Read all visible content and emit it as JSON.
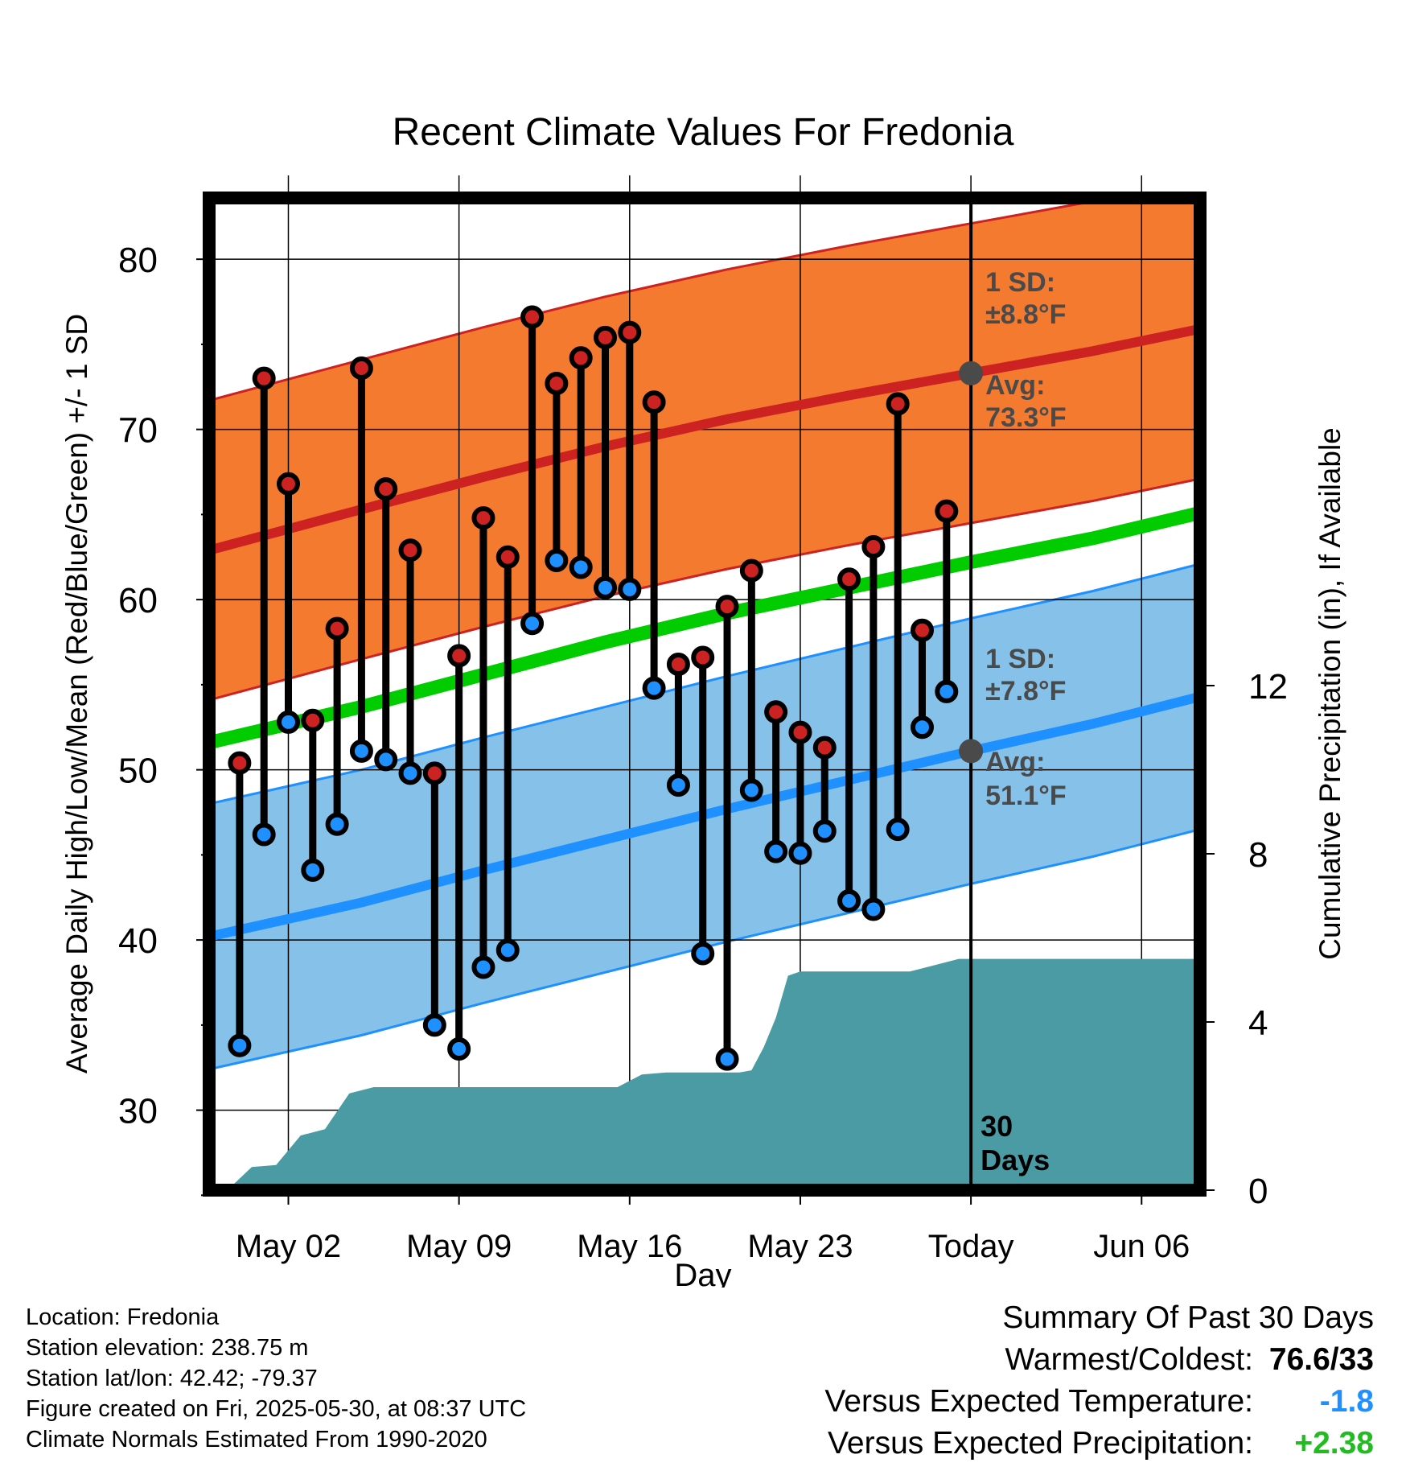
{
  "chart_data": {
    "type": "line",
    "title": "Recent Climate Values For Fredonia",
    "xlabel": "Day",
    "ylabel": "Average Daily High/Low/Mean (Red/Blue/Green) +/- 1 SD",
    "y2label": "Cumulative Precipitation (in), If Available",
    "x_tick_labels": [
      "May 02",
      "May 09",
      "May 16",
      "May 23",
      "Today",
      "Jun 06"
    ],
    "x_tick_days": [
      2,
      9,
      16,
      23,
      30,
      37
    ],
    "xlim": [
      -1.25,
      39.4
    ],
    "ylim": [
      25.3,
      83.6
    ],
    "y_ticks": [
      30,
      40,
      50,
      60,
      70,
      80
    ],
    "y2lim": [
      0,
      23.6
    ],
    "y2_ticks": [
      0,
      4,
      8,
      12
    ],
    "today_day": 30,
    "today_label": [
      "30",
      "Days"
    ],
    "series": [
      {
        "name": "High",
        "color": "#cc2222",
        "band_color": "#f47a30",
        "normal_x": [
          -1.25,
          5,
          10,
          15,
          20,
          25,
          30,
          35,
          39.4
        ],
        "normal_y": [
          62.9,
          65.3,
          67.2,
          69.0,
          70.6,
          72.0,
          73.3,
          74.6,
          75.9
        ],
        "sd": 8.8,
        "sd_label": "1 SD:",
        "sd_value": "±8.8°F",
        "avg_label": "Avg:",
        "avg_value": "73.3°F"
      },
      {
        "name": "Low",
        "color": "#1e90ff",
        "band_color": "#85c1e9",
        "normal_x": [
          -1.25,
          5,
          10,
          15,
          20,
          25,
          30,
          35,
          39.4
        ],
        "normal_y": [
          40.2,
          42.2,
          44.1,
          45.9,
          47.7,
          49.4,
          51.1,
          52.7,
          54.3
        ],
        "sd": 7.8,
        "sd_label": "1 SD:",
        "sd_value": "±7.8°F",
        "avg_label": "Avg:",
        "avg_value": "51.1°F"
      },
      {
        "name": "Mean",
        "color": "#00cc00",
        "normal_x": [
          -1.25,
          5,
          10,
          15,
          20,
          25,
          30,
          35,
          39.4
        ],
        "normal_y": [
          51.6,
          53.7,
          55.6,
          57.5,
          59.2,
          60.7,
          62.2,
          63.6,
          65.1
        ]
      }
    ],
    "daily": {
      "day": [
        0,
        1,
        2,
        3,
        4,
        5,
        6,
        7,
        8,
        9,
        10,
        11,
        12,
        13,
        14,
        15,
        16,
        17,
        18,
        19,
        20,
        21,
        22,
        23,
        24,
        25,
        26,
        27,
        28,
        29
      ],
      "high": [
        50.4,
        73.0,
        66.8,
        52.9,
        58.3,
        73.6,
        66.5,
        62.9,
        49.8,
        56.7,
        64.8,
        62.5,
        76.6,
        72.7,
        74.2,
        75.4,
        75.7,
        71.6,
        56.2,
        56.6,
        59.6,
        61.7,
        53.4,
        52.2,
        51.3,
        61.2,
        63.1,
        71.5,
        58.2,
        65.2
      ],
      "low": [
        33.8,
        46.2,
        52.8,
        44.1,
        46.8,
        51.1,
        50.6,
        49.8,
        35.0,
        33.6,
        38.4,
        39.4,
        58.6,
        62.3,
        61.9,
        60.7,
        60.6,
        54.8,
        49.1,
        39.2,
        33.0,
        48.8,
        45.2,
        45.1,
        46.4,
        42.3,
        41.8,
        46.5,
        52.5,
        54.6
      ]
    },
    "precip": {
      "day": [
        -0.5,
        0.5,
        1.5,
        2.5,
        3.5,
        4.5,
        5.5,
        6.5,
        7.5,
        9.5,
        11.5,
        13.5,
        14.5,
        15.5,
        16.5,
        17.5,
        18.5,
        19.5,
        20.5,
        21.0,
        21.5,
        22.0,
        22.5,
        23.0,
        25.5,
        26.5,
        27.5,
        28.5,
        29.5,
        30,
        39.4
      ],
      "value": [
        0.0,
        0.55,
        0.6,
        1.3,
        1.45,
        2.3,
        2.45,
        2.45,
        2.45,
        2.45,
        2.45,
        2.45,
        2.45,
        2.45,
        2.75,
        2.8,
        2.8,
        2.8,
        2.8,
        2.85,
        3.4,
        4.1,
        5.1,
        5.2,
        5.2,
        5.2,
        5.2,
        5.35,
        5.5,
        5.5,
        5.5
      ]
    }
  },
  "info": {
    "location": "Location: Fredonia",
    "elevation": "Station elevation: 238.75 m",
    "latlon": "Station lat/lon: 42.42; -79.37",
    "created": "Figure created on Fri, 2025-05-30, at 08:37 UTC",
    "normals": "Climate Normals Estimated From 1990-2020"
  },
  "summary": {
    "title": "Summary Of Past 30 Days",
    "warm_cold_label": "Warmest/Coldest:",
    "warm_cold_value": "76.6/33",
    "temp_label": "Versus Expected Temperature:",
    "temp_value": "-1.8",
    "temp_color": "#1e90ff",
    "precip_label": "Versus Expected Precipitation:",
    "precip_value": "+2.38",
    "precip_color": "#22bb22"
  }
}
